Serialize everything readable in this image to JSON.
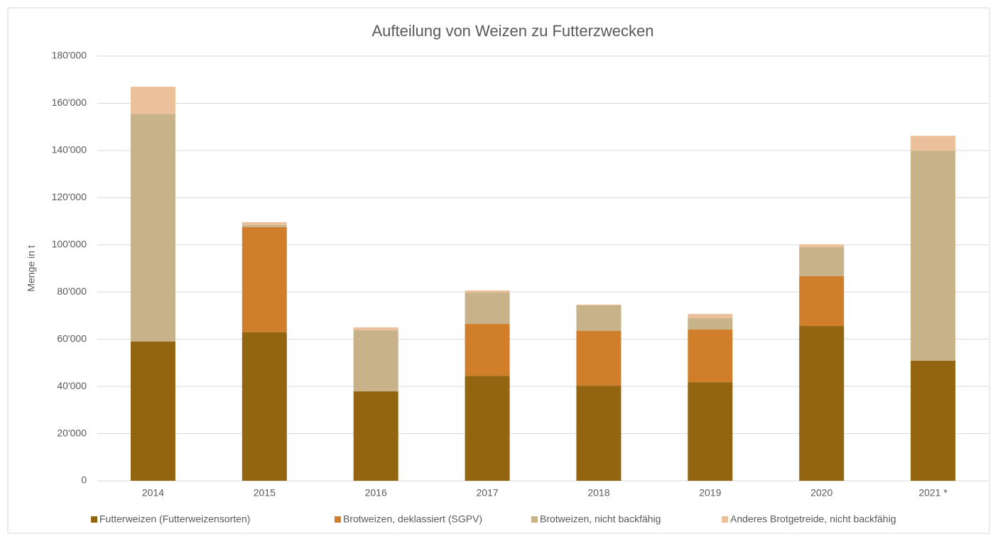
{
  "chart_data": {
    "type": "stacked_bar",
    "title": "Aufteilung von Weizen zu Futterzwecken",
    "y_label": "Menge in t",
    "categories": [
      "2014",
      "2015",
      "2016",
      "2017",
      "2018",
      "2019",
      "2020",
      "2021 *"
    ],
    "series": [
      {
        "name": "Futterweizen (Futterweizensorten)",
        "color": "#936511",
        "values": [
          59000,
          63000,
          37900,
          44500,
          40300,
          41800,
          65600,
          50900
        ]
      },
      {
        "name": "Brotweizen, deklassiert (SGPV)",
        "color": "#d17e2b",
        "values": [
          0,
          44500,
          0,
          22000,
          23200,
          22300,
          21100,
          0
        ]
      },
      {
        "name": "Brotweizen, nicht backfähig",
        "color": "#c8b28a",
        "values": [
          96500,
          900,
          25900,
          13300,
          10900,
          4800,
          12300,
          89000
        ]
      },
      {
        "name": "Anderes Brotgetreide, nicht backfähig",
        "color": "#ecc09a",
        "values": [
          11500,
          1200,
          1200,
          900,
          300,
          1800,
          1200,
          6300
        ]
      }
    ],
    "ylim": [
      0,
      180000
    ],
    "yticks": [
      0,
      {
        "value": 20000,
        "label": "20'000"
      },
      {
        "value": 40000,
        "label": "40'000"
      },
      {
        "value": 60000,
        "label": "60'000"
      },
      {
        "value": 80000,
        "label": "80'000"
      },
      {
        "value": 100000,
        "label": "100'000"
      },
      {
        "value": 120000,
        "label": "120'000"
      },
      {
        "value": 140000,
        "label": "140'000"
      },
      {
        "value": 160000,
        "label": "160'000"
      },
      {
        "value": 180000,
        "label": "180'000"
      }
    ],
    "grid": true,
    "legend": "bottom"
  }
}
